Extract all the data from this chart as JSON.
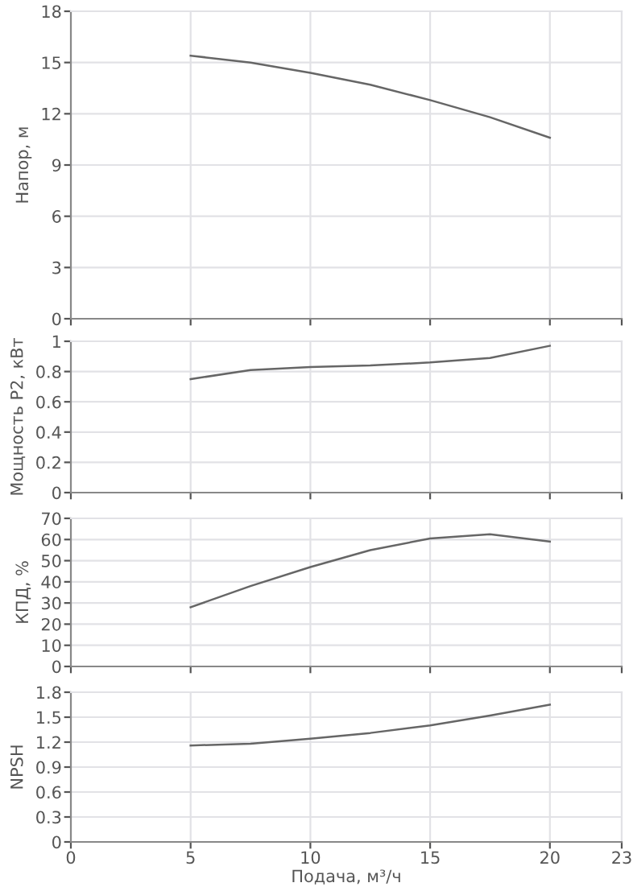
{
  "chart_data": [
    {
      "type": "line",
      "ylabel": "Напор, м",
      "x": [
        5,
        7.5,
        10,
        12.5,
        15,
        17.5,
        20
      ],
      "xlim": [
        0,
        23
      ],
      "xticks": [
        0,
        5,
        10,
        15,
        20,
        23
      ],
      "ylim": [
        0,
        18
      ],
      "yticks": [
        0,
        3,
        6,
        9,
        12,
        15,
        18
      ],
      "grid": true,
      "tick_labels": "y",
      "series": [
        {
          "color": "#666666",
          "values": [
            15.4,
            15.0,
            14.4,
            13.7,
            12.8,
            11.8,
            10.6
          ]
        }
      ]
    },
    {
      "type": "line",
      "ylabel": "Мощность P2, кВт",
      "x": [
        5,
        7.5,
        10,
        12.5,
        15,
        17.5,
        20
      ],
      "xlim": [
        0,
        23
      ],
      "xticks": [
        0,
        5,
        10,
        15,
        20,
        23
      ],
      "ylim": [
        0,
        1
      ],
      "yticks": [
        0,
        0.2,
        0.4,
        0.6,
        0.8,
        1
      ],
      "grid": true,
      "tick_labels": "y",
      "series": [
        {
          "color": "#666666",
          "values": [
            0.75,
            0.81,
            0.83,
            0.84,
            0.86,
            0.89,
            0.97
          ]
        }
      ]
    },
    {
      "type": "line",
      "ylabel": "КПД, %",
      "x": [
        5,
        7.5,
        10,
        12.5,
        15,
        17.5,
        20
      ],
      "xlim": [
        0,
        23
      ],
      "xticks": [
        0,
        5,
        10,
        15,
        20,
        23
      ],
      "ylim": [
        0,
        70
      ],
      "yticks": [
        0,
        10,
        20,
        30,
        40,
        50,
        60,
        70
      ],
      "grid": true,
      "tick_labels": "y",
      "series": [
        {
          "color": "#666666",
          "values": [
            28,
            38,
            47,
            55,
            60.5,
            62.5,
            59
          ]
        }
      ]
    },
    {
      "type": "line",
      "ylabel": "NPSH",
      "xlabel": "Подача, м³/ч",
      "x": [
        5,
        7.5,
        10,
        12.5,
        15,
        17.5,
        20
      ],
      "xlim": [
        0,
        23
      ],
      "xticks": [
        0,
        5,
        10,
        15,
        20,
        23
      ],
      "ylim": [
        0,
        1.8
      ],
      "yticks": [
        0,
        0.3,
        0.6,
        0.9,
        1.2,
        1.5,
        1.8
      ],
      "grid": true,
      "series": [
        {
          "color": "#666666",
          "values": [
            1.16,
            1.18,
            1.24,
            1.31,
            1.4,
            1.52,
            1.65
          ]
        }
      ]
    }
  ]
}
